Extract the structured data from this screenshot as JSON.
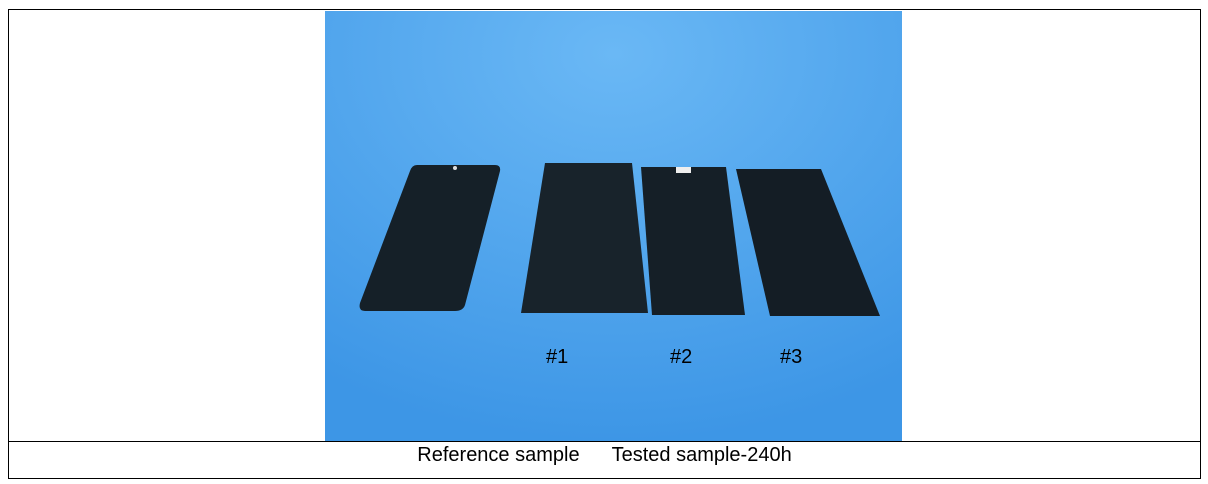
{
  "photo": {
    "labels": [
      "#1",
      "#2",
      "#3"
    ]
  },
  "caption": {
    "left": "Reference sample",
    "right": "Tested sample-240h"
  }
}
